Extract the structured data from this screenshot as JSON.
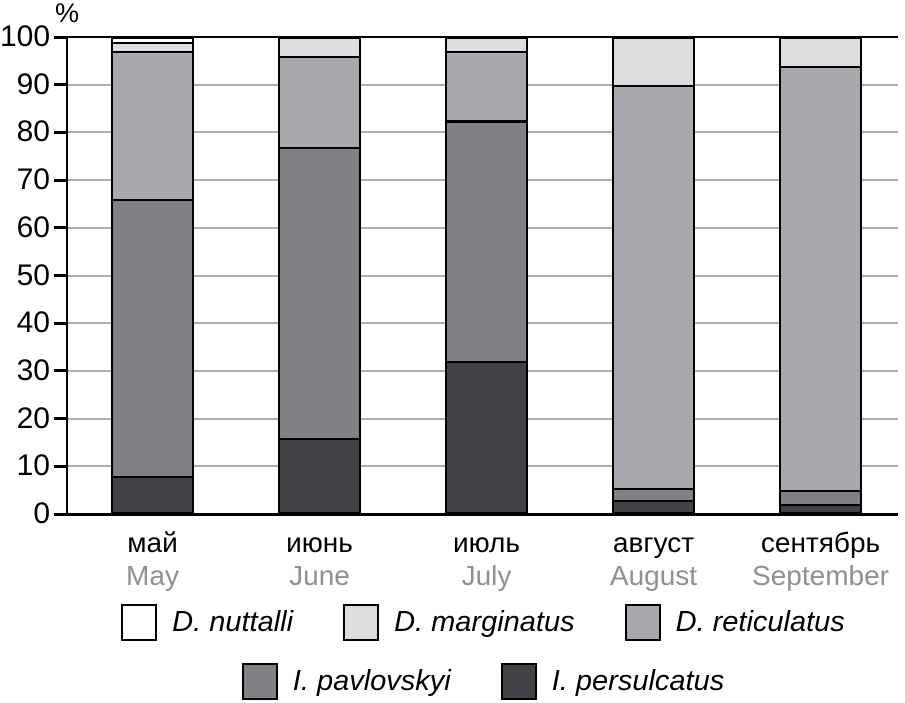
{
  "axis": {
    "unit_label": "%",
    "yticks": [
      0,
      10,
      20,
      30,
      40,
      50,
      60,
      70,
      80,
      90,
      100
    ]
  },
  "palette": {
    "D. nuttalli": "#ffffff",
    "D. marginatus": "#dcddde",
    "D. reticulatus": "#a7a9ac",
    "I. pavlovskyi": "#7f8184",
    "I. persulcatus": "#414245"
  },
  "chart_data": {
    "type": "bar",
    "subtype": "stacked-percentage",
    "title": "",
    "xlabel": "",
    "ylabel": "%",
    "ylim": [
      0,
      100
    ],
    "grid": true,
    "legend_position": "bottom",
    "categories": [
      "май",
      "июнь",
      "июль",
      "август",
      "сентябрь"
    ],
    "categories_en": [
      "May",
      "June",
      "July",
      "August",
      "September"
    ],
    "series": [
      {
        "name": "I. persulcatus",
        "values": [
          8,
          16,
          32,
          3,
          2
        ]
      },
      {
        "name": "I. pavlovskyi",
        "values": [
          58,
          61,
          50.5,
          2.5,
          3
        ]
      },
      {
        "name": "D. reticulatus",
        "values": [
          31,
          19,
          14.5,
          84.5,
          89
        ]
      },
      {
        "name": "D. marginatus",
        "values": [
          2,
          4,
          3,
          10,
          6
        ]
      },
      {
        "name": "D. nuttalli",
        "values": [
          1,
          0,
          0,
          0,
          0
        ]
      }
    ]
  },
  "legend": {
    "rows": [
      [
        "D. nuttalli",
        "D. marginatus",
        "D. reticulatus"
      ],
      [
        "I. pavlovskyi",
        "I. persulcatus"
      ]
    ]
  }
}
